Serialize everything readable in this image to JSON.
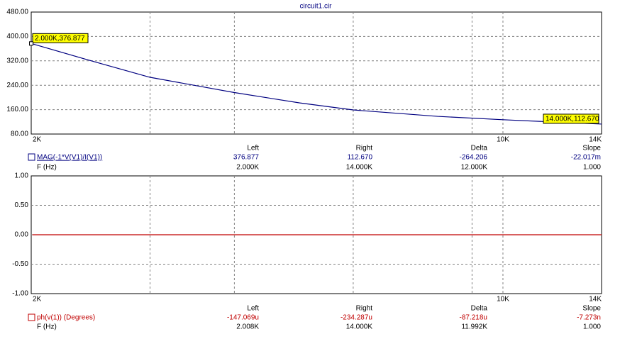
{
  "chart_data": [
    {
      "type": "line",
      "title": "circuit1.cir",
      "xscale": "log",
      "xlim": [
        2000,
        14000
      ],
      "xticks": [
        {
          "value": 2000,
          "label": "2K"
        },
        {
          "value": 10000,
          "label": "10K"
        },
        {
          "value": 14000,
          "label": "14K"
        }
      ],
      "xgrid": [
        3000,
        4000,
        6000,
        9000
      ],
      "ylim": [
        80,
        480
      ],
      "yticks": [
        {
          "value": 80,
          "label": "80.00"
        },
        {
          "value": 160,
          "label": "160.00"
        },
        {
          "value": 240,
          "label": "240.00"
        },
        {
          "value": 320,
          "label": "320.00"
        },
        {
          "value": 400,
          "label": "400.00"
        },
        {
          "value": 480,
          "label": "480.00"
        }
      ],
      "grid": true,
      "series": [
        {
          "name": "MAG(-1*V(V1)/I(V1))",
          "color": "#000080",
          "x": [
            2000,
            2500,
            3000,
            4000,
            5000,
            6000,
            8000,
            10000,
            12000,
            14000
          ],
          "values": [
            376.877,
            315,
            266,
            216,
            182,
            159,
            138,
            127,
            119,
            112.67
          ]
        }
      ],
      "annotations": [
        "2.000K,376.877",
        "14.000K,112.670"
      ],
      "readout": {
        "columns": [
          "Left",
          "Right",
          "Delta",
          "Slope"
        ],
        "rows": [
          {
            "label": "MAG(-1*V(V1)/I(V1))",
            "cells": [
              "376.877",
              "112.670",
              "-264.206",
              "-22.017m"
            ]
          },
          {
            "label": "F (Hz)",
            "cells": [
              "2.000K",
              "14.000K",
              "12.000K",
              "1.000"
            ]
          }
        ]
      }
    },
    {
      "type": "line",
      "xscale": "log",
      "xlim": [
        2000,
        14000
      ],
      "xticks": [
        {
          "value": 2000,
          "label": "2K"
        },
        {
          "value": 10000,
          "label": "10K"
        },
        {
          "value": 14000,
          "label": "14K"
        }
      ],
      "xgrid": [
        3000,
        4000,
        6000,
        9000
      ],
      "ylim": [
        -1,
        1
      ],
      "yticks": [
        {
          "value": -1,
          "label": "-1.00"
        },
        {
          "value": -0.5,
          "label": "-0.50"
        },
        {
          "value": 0,
          "label": "0.00"
        },
        {
          "value": 0.5,
          "label": "0.50"
        },
        {
          "value": 1,
          "label": "1.00"
        }
      ],
      "grid": true,
      "series": [
        {
          "name": "ph(v(1)) (Degrees)",
          "color": "#c00000",
          "x": [
            2008,
            14000
          ],
          "values": [
            -0.000147069,
            -0.000234287
          ]
        }
      ],
      "readout": {
        "columns": [
          "Left",
          "Right",
          "Delta",
          "Slope"
        ],
        "rows": [
          {
            "label": "ph(v(1)) (Degrees)",
            "cells": [
              "-147.069u",
              "-234.287u",
              "-87.218u",
              "-7.273n"
            ]
          },
          {
            "label": "F (Hz)",
            "cells": [
              "2.008K",
              "14.000K",
              "11.992K",
              "1.000"
            ]
          }
        ]
      }
    }
  ]
}
